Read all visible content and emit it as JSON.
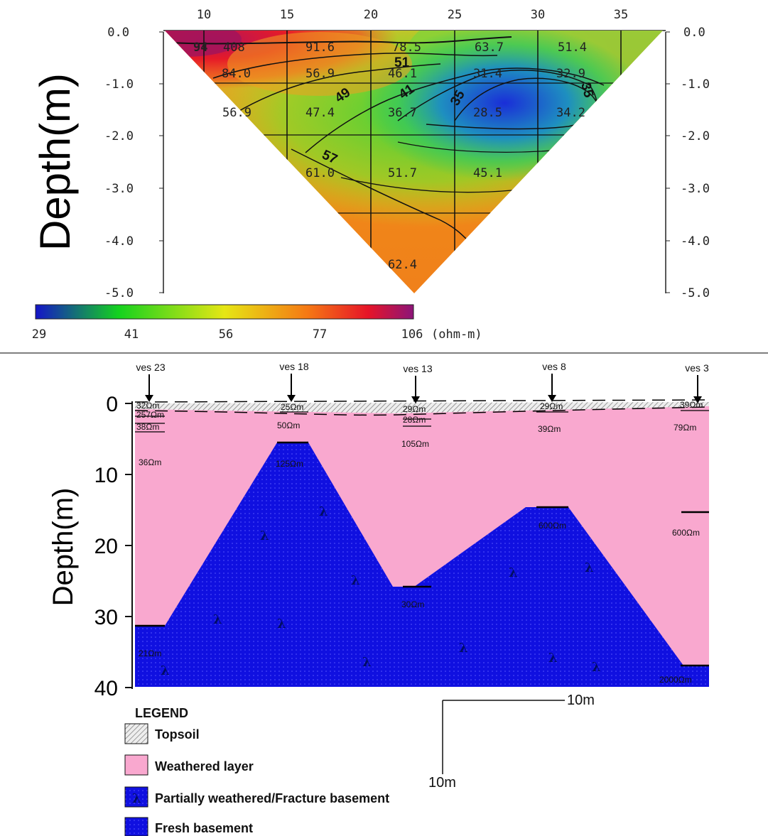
{
  "pseudosection": {
    "x_ticks": [
      "10",
      "15",
      "20",
      "25",
      "30",
      "35"
    ],
    "y_ticks": [
      "0.0",
      "-1.0",
      "-2.0",
      "-3.0",
      "-4.0",
      "-5.0"
    ],
    "y_label": "Depth(m)",
    "values": [
      {
        "text": "94"
      },
      {
        "text": "408"
      },
      {
        "text": "91.6"
      },
      {
        "text": "78.5"
      },
      {
        "text": "63.7"
      },
      {
        "text": "51.4"
      },
      {
        "text": "84.0"
      },
      {
        "text": "56.9"
      },
      {
        "text": "46.1"
      },
      {
        "text": "31.4"
      },
      {
        "text": "32.9"
      },
      {
        "text": "56.9"
      },
      {
        "text": "47.4"
      },
      {
        "text": "36.7"
      },
      {
        "text": "28.5"
      },
      {
        "text": "34.2"
      },
      {
        "text": "61.0"
      },
      {
        "text": "51.7"
      },
      {
        "text": "45.1"
      },
      {
        "text": "62.4"
      }
    ],
    "contour_labels": [
      "51",
      "49",
      "41",
      "35",
      "35",
      "57"
    ],
    "colorbar": {
      "ticks": [
        "29",
        "41",
        "56",
        "77",
        "106"
      ],
      "unit": "(ohm-m)",
      "colors": [
        "#1414c8",
        "#14d21e",
        "#e6e614",
        "#f57814",
        "#e61428",
        "#8c1478"
      ]
    }
  },
  "section": {
    "y_label": "Depth(m)",
    "y_ticks": [
      "0",
      "10",
      "20",
      "30",
      "40"
    ],
    "ves": [
      "ves 23",
      "ves 18",
      "ves 13",
      "ves 8",
      "ves 3"
    ],
    "resistivities": [
      {
        "text": "32Ωm"
      },
      {
        "text": "257Ωm"
      },
      {
        "text": "38Ωm"
      },
      {
        "text": "36Ωm"
      },
      {
        "text": "21Ωm"
      },
      {
        "text": "25Ωm"
      },
      {
        "text": "50Ωm"
      },
      {
        "text": "125Ωm"
      },
      {
        "text": "29Ωm"
      },
      {
        "text": "28Ωm"
      },
      {
        "text": "105Ωm"
      },
      {
        "text": "30Ωm"
      },
      {
        "text": "29Ωm"
      },
      {
        "text": "39Ωm"
      },
      {
        "text": "600Ωm"
      },
      {
        "text": "39Ωm"
      },
      {
        "text": "79Ωm"
      },
      {
        "text": "600Ωm"
      },
      {
        "text": "2000Ωm"
      }
    ],
    "lambda_glyph": "λ",
    "colors": {
      "weathered": "#f9a8cf",
      "basement": "#1010e0"
    }
  },
  "scale_bar": {
    "horizontal": "10m",
    "vertical": "10m"
  },
  "legend": {
    "title": "LEGEND",
    "items": [
      "Topsoil",
      "Weathered layer",
      "Partially weathered/Fracture basement",
      "Fresh basement"
    ]
  }
}
